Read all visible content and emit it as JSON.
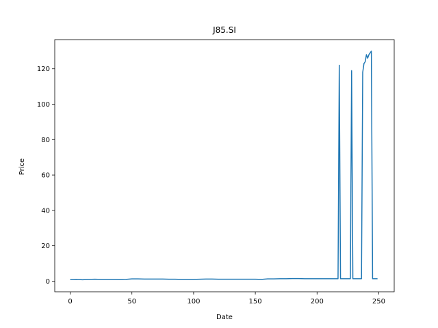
{
  "chart_data": {
    "type": "line",
    "title": "J85.SI",
    "xlabel": "Date",
    "ylabel": "Price",
    "xlim": [
      -12.5,
      262.5
    ],
    "ylim": [
      -6,
      136.5
    ],
    "xticks": [
      0,
      50,
      100,
      150,
      200,
      250
    ],
    "yticks": [
      0,
      20,
      40,
      60,
      80,
      100,
      120
    ],
    "grid": false,
    "series": [
      {
        "color": "#1f77b4",
        "x": [
          0,
          5,
          10,
          15,
          20,
          25,
          30,
          35,
          40,
          45,
          50,
          55,
          60,
          65,
          70,
          75,
          80,
          85,
          90,
          95,
          100,
          105,
          110,
          115,
          120,
          125,
          130,
          135,
          140,
          145,
          150,
          155,
          160,
          165,
          170,
          175,
          180,
          185,
          190,
          195,
          200,
          205,
          210,
          215,
          217,
          218,
          219,
          220,
          225,
          227,
          228,
          229,
          230,
          235,
          236,
          237,
          238,
          239,
          240,
          241,
          242,
          243,
          244,
          245,
          246,
          247,
          248,
          249
        ],
        "y": [
          0.9,
          1.0,
          0.8,
          1.0,
          1.1,
          1.0,
          1.0,
          1.0,
          0.9,
          1.0,
          1.3,
          1.3,
          1.2,
          1.2,
          1.2,
          1.2,
          1.1,
          1.1,
          1.0,
          1.0,
          1.0,
          1.1,
          1.2,
          1.2,
          1.1,
          1.1,
          1.1,
          1.1,
          1.1,
          1.1,
          1.1,
          1.0,
          1.3,
          1.3,
          1.4,
          1.4,
          1.5,
          1.5,
          1.4,
          1.4,
          1.4,
          1.4,
          1.4,
          1.4,
          1.4,
          122,
          1.4,
          1.4,
          1.4,
          1.4,
          119,
          1.4,
          1.4,
          1.4,
          1.4,
          118,
          123,
          124,
          128,
          126,
          128,
          129,
          130,
          1.4,
          1.4,
          1.4,
          1.4,
          1.4
        ]
      }
    ]
  }
}
